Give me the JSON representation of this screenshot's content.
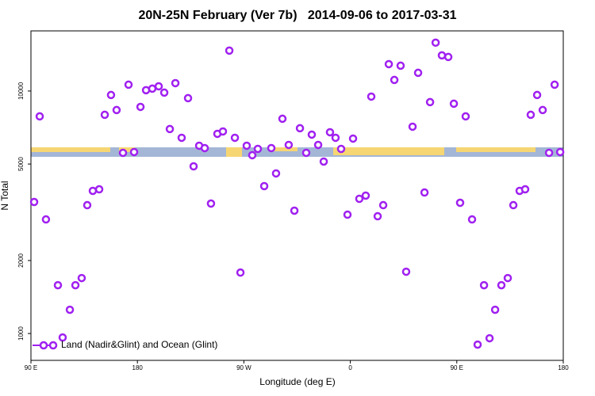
{
  "chart_data": {
    "type": "scatter",
    "title": "20N-25N February (Ver 7b)   2014-09-06 to 2017-03-31",
    "x_label": "Longitude (deg E)",
    "y_label": "N Total",
    "ylog": true,
    "legend_position": "bottom-left",
    "xlim": [
      90,
      540
    ],
    "ylim": [
      775,
      17700
    ],
    "xticks": [
      {
        "value": 90,
        "label": "90 E"
      },
      180,
      {
        "value": 270,
        "label": "90 W"
      },
      {
        "value": 360,
        "label": "0"
      },
      {
        "value": 450,
        "label": "90 E"
      },
      {
        "value": 540,
        "label": "180"
      }
    ],
    "yticks": [
      1000,
      2000,
      5000,
      10000
    ],
    "series": [
      {
        "name": "Land (Nadir&Glint) and Ocean (Glint)",
        "color": "#a020f0",
        "x": [
          92.7,
          97.4,
          102.7,
          112.8,
          116.8,
          122.9,
          127.6,
          132.9,
          137.6,
          142.3,
          147.7,
          152.4,
          157.7,
          162.4,
          167.8,
          172.5,
          177.2,
          182.6,
          187.3,
          192.6,
          198.0,
          202.7,
          207.4,
          212.1,
          217.4,
          222.8,
          227.5,
          232.2,
          236.9,
          242.2,
          247.6,
          252.3,
          257.7,
          262.4,
          267.1,
          272.4,
          277.1,
          281.8,
          287.2,
          293.2,
          297.2,
          302.6,
          307.9,
          312.7,
          317.4,
          322.7,
          327.4,
          332.8,
          337.5,
          342.8,
          347.5,
          352.2,
          357.6,
          362.3,
          367.6,
          373.0,
          377.7,
          383.1,
          387.8,
          392.5,
          397.2,
          402.5,
          407.2,
          412.6,
          417.3,
          422.7,
          427.4,
          432.1,
          437.4,
          442.8,
          447.5,
          452.8,
          457.5,
          462.9,
          467.6,
          473.0,
          477.7,
          482.4,
          487.7,
          493.1,
          497.8,
          503.1,
          507.8,
          512.5,
          517.9,
          522.6,
          528.0,
          532.7,
          537.4
        ],
        "values": [
          3487,
          7861,
          2955,
          1582,
          963,
          1253,
          1582,
          1693,
          3383,
          3875,
          3933,
          7980,
          9632,
          8348,
          5561,
          10620,
          5603,
          8602,
          10080,
          10230,
          10460,
          9850,
          6970,
          10780,
          6415,
          9345,
          4892,
          5950,
          5817,
          3435,
          6660,
          6812,
          14680,
          6415,
          1784,
          5950,
          5437,
          5773,
          4054,
          5817,
          4573,
          7686,
          5995,
          3211,
          7023,
          5561,
          6611,
          5995,
          5118,
          6762,
          6415,
          5773,
          3091,
          6367,
          3594,
          3704,
          9486,
          3045,
          3383,
          12910,
          11110,
          12720,
          1798,
          7128,
          11890,
          3816,
          9000,
          15830,
          14030,
          13820,
          8866,
          3461,
          7861,
          2955,
          900,
          1582,
          956,
          1253,
          1582,
          1693,
          3383,
          3875,
          3933,
          7980,
          9632,
          8348,
          5561,
          10620,
          5603
        ]
      }
    ]
  }
}
